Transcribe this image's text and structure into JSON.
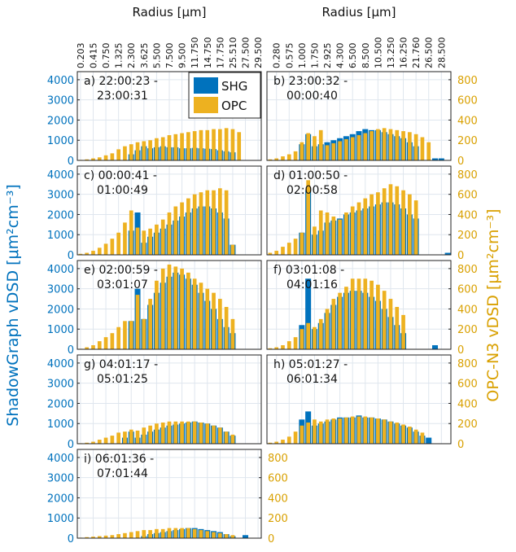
{
  "x_axis": {
    "label": "Radius [μm]",
    "categories": [
      "0.203",
      "0.280",
      "0.415",
      "0.575",
      "0.750",
      "1.000",
      "1.325",
      "1.750",
      "2.300",
      "2.925",
      "3.625",
      "4.300",
      "5.500",
      "6.500",
      "7.500",
      "8.500",
      "9.500",
      "10.500",
      "11.750",
      "13.250",
      "14.750",
      "16.250",
      "17.750",
      "21.760",
      "25.510",
      "26.500",
      "27.500",
      "28.500",
      "29.500"
    ]
  },
  "y_label": "ShadowGraph vDSD [μm²cm⁻³]",
  "y2_label": "OPC-N3 vDSD [μm²cm⁻³]",
  "series": [
    {
      "name": "SHG",
      "color": "#0072bd",
      "axis": "y"
    },
    {
      "name": "OPC",
      "color": "#edb120",
      "axis": "y2"
    }
  ],
  "legend": "upper right",
  "grid": true,
  "chart_data": [
    {
      "type": "bar",
      "label": [
        "a) 22:00:23 -",
        "23:00:31"
      ],
      "ylim": [
        0,
        4400
      ],
      "y2lim": [
        0,
        880
      ],
      "yticks": [
        0,
        1000,
        2000,
        3000,
        4000
      ],
      "series": [
        {
          "values": [
            0,
            0,
            0,
            0,
            0,
            0,
            0,
            0,
            300,
            500,
            700,
            600,
            650,
            700,
            650,
            650,
            600,
            600,
            620,
            600,
            580,
            560,
            500,
            450,
            400,
            0,
            0,
            0,
            0
          ]
        },
        {
          "values": [
            5,
            10,
            20,
            30,
            50,
            70,
            110,
            140,
            160,
            180,
            190,
            200,
            220,
            230,
            250,
            260,
            270,
            280,
            290,
            300,
            300,
            310,
            310,
            320,
            310,
            280,
            0,
            0,
            0
          ]
        }
      ]
    },
    {
      "type": "bar",
      "label": [
        "b) 23:00:32 -",
        "00:00:40"
      ],
      "ylim": [
        0,
        4400
      ],
      "y2lim": [
        0,
        880
      ],
      "y2ticks": [
        0,
        200,
        400,
        600,
        800
      ],
      "series": [
        {
          "values": [
            0,
            0,
            0,
            0,
            0,
            800,
            1300,
            700,
            800,
            900,
            1000,
            1100,
            1200,
            1300,
            1450,
            1550,
            1500,
            1500,
            1400,
            1300,
            1200,
            1100,
            900,
            700,
            0,
            0,
            100,
            100,
            0
          ]
        },
        {
          "values": [
            10,
            20,
            40,
            60,
            90,
            180,
            270,
            240,
            300,
            150,
            170,
            190,
            210,
            230,
            250,
            270,
            290,
            310,
            320,
            310,
            300,
            290,
            280,
            260,
            230,
            180,
            0,
            0,
            0
          ]
        }
      ]
    },
    {
      "type": "bar",
      "label": [
        "c) 00:00:41 -",
        "01:00:49"
      ],
      "ylim": [
        0,
        4400
      ],
      "y2lim": [
        0,
        880
      ],
      "yticks": [
        0,
        1000,
        2000,
        3000,
        4000
      ],
      "series": [
        {
          "values": [
            0,
            0,
            0,
            0,
            0,
            0,
            0,
            0,
            1200,
            2100,
            600,
            900,
            1100,
            1300,
            1500,
            1700,
            1900,
            2100,
            2300,
            2400,
            2400,
            2300,
            2100,
            1800,
            500,
            0,
            0,
            0,
            0
          ]
        },
        {
          "values": [
            10,
            20,
            40,
            70,
            110,
            160,
            220,
            320,
            440,
            270,
            240,
            260,
            300,
            350,
            420,
            480,
            520,
            560,
            600,
            620,
            640,
            640,
            660,
            640,
            100,
            0,
            0,
            0,
            0
          ]
        }
      ]
    },
    {
      "type": "bar",
      "label": [
        "d) 01:00:50 -",
        "02:00:58"
      ],
      "ylim": [
        0,
        4400
      ],
      "y2lim": [
        0,
        880
      ],
      "y2ticks": [
        0,
        200,
        400,
        600,
        800
      ],
      "series": [
        {
          "values": [
            0,
            0,
            0,
            0,
            0,
            1100,
            3200,
            1000,
            1200,
            1600,
            1700,
            1800,
            2000,
            2100,
            2200,
            2300,
            2400,
            2500,
            2600,
            2600,
            2500,
            2300,
            2000,
            1800,
            0,
            0,
            0,
            0,
            100
          ]
        },
        {
          "values": [
            20,
            40,
            80,
            120,
            160,
            220,
            740,
            280,
            440,
            420,
            380,
            350,
            420,
            480,
            520,
            560,
            600,
            620,
            660,
            700,
            680,
            640,
            600,
            540,
            0,
            0,
            0,
            0,
            0
          ]
        }
      ]
    },
    {
      "type": "bar",
      "label": [
        "e) 02:00:59 -",
        "03:01:07"
      ],
      "ylim": [
        0,
        4400
      ],
      "y2lim": [
        0,
        880
      ],
      "yticks": [
        0,
        1000,
        2000,
        3000,
        4000
      ],
      "series": [
        {
          "values": [
            0,
            0,
            0,
            0,
            0,
            0,
            0,
            0,
            1400,
            3000,
            1500,
            2200,
            2800,
            3300,
            3600,
            3800,
            3700,
            3500,
            3200,
            2800,
            2400,
            2000,
            1500,
            1100,
            800,
            0,
            0,
            0,
            0
          ]
        },
        {
          "values": [
            5,
            20,
            40,
            80,
            120,
            160,
            220,
            280,
            280,
            540,
            300,
            500,
            680,
            800,
            840,
            820,
            800,
            760,
            700,
            660,
            600,
            560,
            500,
            420,
            300,
            0,
            0,
            0,
            0
          ]
        }
      ]
    },
    {
      "type": "bar",
      "label": [
        "f) 03:01:08 -",
        "04:01:16"
      ],
      "ylim": [
        0,
        4400
      ],
      "y2lim": [
        0,
        880
      ],
      "y2ticks": [
        0,
        200,
        400,
        600,
        800
      ],
      "series": [
        {
          "values": [
            0,
            0,
            0,
            0,
            0,
            1200,
            3500,
            1000,
            1300,
            1800,
            2200,
            2600,
            2800,
            2900,
            2900,
            2800,
            2600,
            2400,
            2000,
            1600,
            1200,
            800,
            0,
            0,
            0,
            0,
            200,
            0,
            0
          ]
        },
        {
          "values": [
            10,
            20,
            40,
            80,
            120,
            200,
            260,
            220,
            300,
            400,
            500,
            560,
            620,
            700,
            700,
            700,
            680,
            640,
            580,
            500,
            420,
            340,
            0,
            0,
            0,
            0,
            0,
            0,
            0
          ]
        }
      ]
    },
    {
      "type": "bar",
      "label": [
        "g) 04:01:17 -",
        "05:01:25"
      ],
      "ylim": [
        0,
        4400
      ],
      "y2lim": [
        0,
        880
      ],
      "yticks": [
        0,
        1000,
        2000,
        3000,
        4000
      ],
      "series": [
        {
          "values": [
            0,
            0,
            0,
            0,
            0,
            0,
            0,
            300,
            600,
            300,
            450,
            600,
            700,
            800,
            900,
            950,
            1000,
            1050,
            1100,
            1050,
            1000,
            900,
            800,
            600,
            400,
            0,
            0,
            0,
            0
          ]
        },
        {
          "values": [
            5,
            10,
            20,
            40,
            60,
            80,
            110,
            120,
            140,
            130,
            160,
            180,
            200,
            210,
            220,
            220,
            220,
            220,
            220,
            210,
            200,
            180,
            160,
            120,
            90,
            0,
            0,
            0,
            0
          ]
        }
      ]
    },
    {
      "type": "bar",
      "label": [
        "h) 05:01:27 -",
        "06:01:34"
      ],
      "ylim": [
        0,
        4400
      ],
      "y2lim": [
        0,
        880
      ],
      "y2ticks": [
        0,
        200,
        400,
        600,
        800
      ],
      "series": [
        {
          "values": [
            0,
            0,
            0,
            0,
            0,
            1200,
            1600,
            900,
            1000,
            1100,
            1200,
            1300,
            1300,
            1300,
            1400,
            1300,
            1300,
            1250,
            1200,
            1100,
            1000,
            900,
            800,
            600,
            400,
            300,
            0,
            0,
            0
          ]
        },
        {
          "values": [
            10,
            20,
            40,
            70,
            120,
            180,
            210,
            240,
            220,
            240,
            250,
            250,
            260,
            270,
            270,
            270,
            260,
            250,
            240,
            220,
            210,
            190,
            170,
            140,
            110,
            0,
            0,
            0,
            0
          ]
        }
      ]
    },
    {
      "type": "bar",
      "label": [
        "i) 06:01:36 -",
        "07:01:44"
      ],
      "ylim": [
        0,
        4400
      ],
      "y2lim": [
        0,
        880
      ],
      "yticks": [
        0,
        1000,
        2000,
        3000,
        4000
      ],
      "y2ticks": [
        0,
        200,
        400,
        600,
        800
      ],
      "series": [
        {
          "values": [
            0,
            0,
            0,
            0,
            0,
            0,
            0,
            0,
            0,
            0,
            100,
            200,
            250,
            300,
            350,
            400,
            450,
            500,
            500,
            450,
            400,
            350,
            300,
            200,
            100,
            0,
            150,
            0,
            0
          ]
        },
        {
          "values": [
            5,
            10,
            15,
            20,
            25,
            30,
            40,
            50,
            60,
            70,
            80,
            80,
            90,
            90,
            100,
            100,
            100,
            100,
            90,
            80,
            70,
            60,
            50,
            40,
            30,
            0,
            0,
            0,
            0
          ]
        }
      ]
    }
  ]
}
